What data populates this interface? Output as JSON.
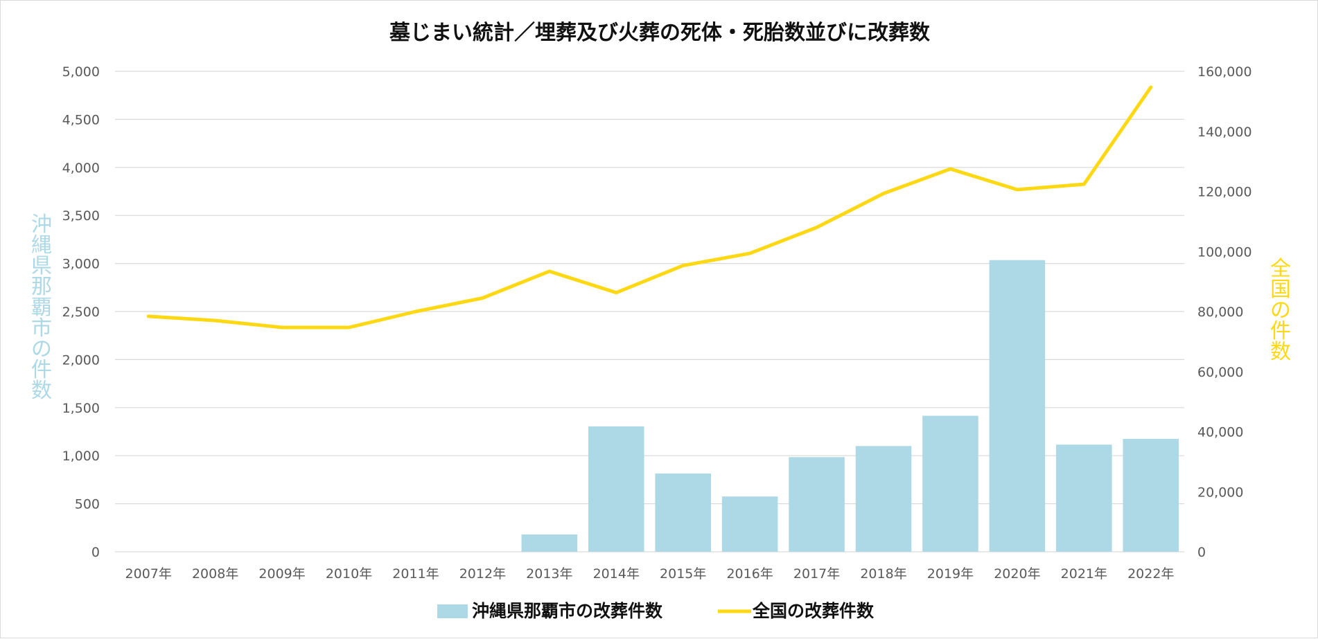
{
  "colors": {
    "bar": "#add8e6",
    "line": "#ffd814",
    "left_axis_title": "#add8e6",
    "right_axis_title": "#ffd814"
  },
  "chart_data": {
    "type": "bar",
    "title": "墓じまい統計／埋葬及び火葬の死体・死胎数並びに改葬数",
    "categories": [
      "2007年",
      "2008年",
      "2009年",
      "2010年",
      "2011年",
      "2012年",
      "2013年",
      "2014年",
      "2015年",
      "2016年",
      "2017年",
      "2018年",
      "2019年",
      "2020年",
      "2021年",
      "2022年"
    ],
    "y_left": {
      "label": "沖縄県那覇市の件数",
      "range": [
        0,
        5000
      ],
      "ticks": [
        "0",
        "500",
        "1,000",
        "1,500",
        "2,000",
        "2,500",
        "3,000",
        "3,500",
        "4,000",
        "4,500",
        "5,000"
      ]
    },
    "y_right": {
      "label": "全国の件数",
      "range": [
        0,
        160000
      ],
      "ticks": [
        "0",
        "20,000",
        "40,000",
        "60,000",
        "80,000",
        "100,000",
        "120,000",
        "140,000",
        "160,000"
      ]
    },
    "series": [
      {
        "name": "沖縄県那覇市の改葬件数",
        "type": "bar",
        "axis": "left",
        "values": [
          0,
          0,
          0,
          0,
          0,
          0,
          180,
          1305,
          815,
          575,
          985,
          1100,
          1415,
          3035,
          1115,
          1175
        ]
      },
      {
        "name": "全国の改葬件数",
        "type": "line",
        "axis": "right",
        "values": [
          78400,
          77000,
          74700,
          74700,
          80000,
          84500,
          93400,
          86300,
          95300,
          99400,
          108000,
          119300,
          127500,
          120600,
          122400,
          154700
        ]
      }
    ],
    "legend_position": "bottom",
    "grid": true
  }
}
